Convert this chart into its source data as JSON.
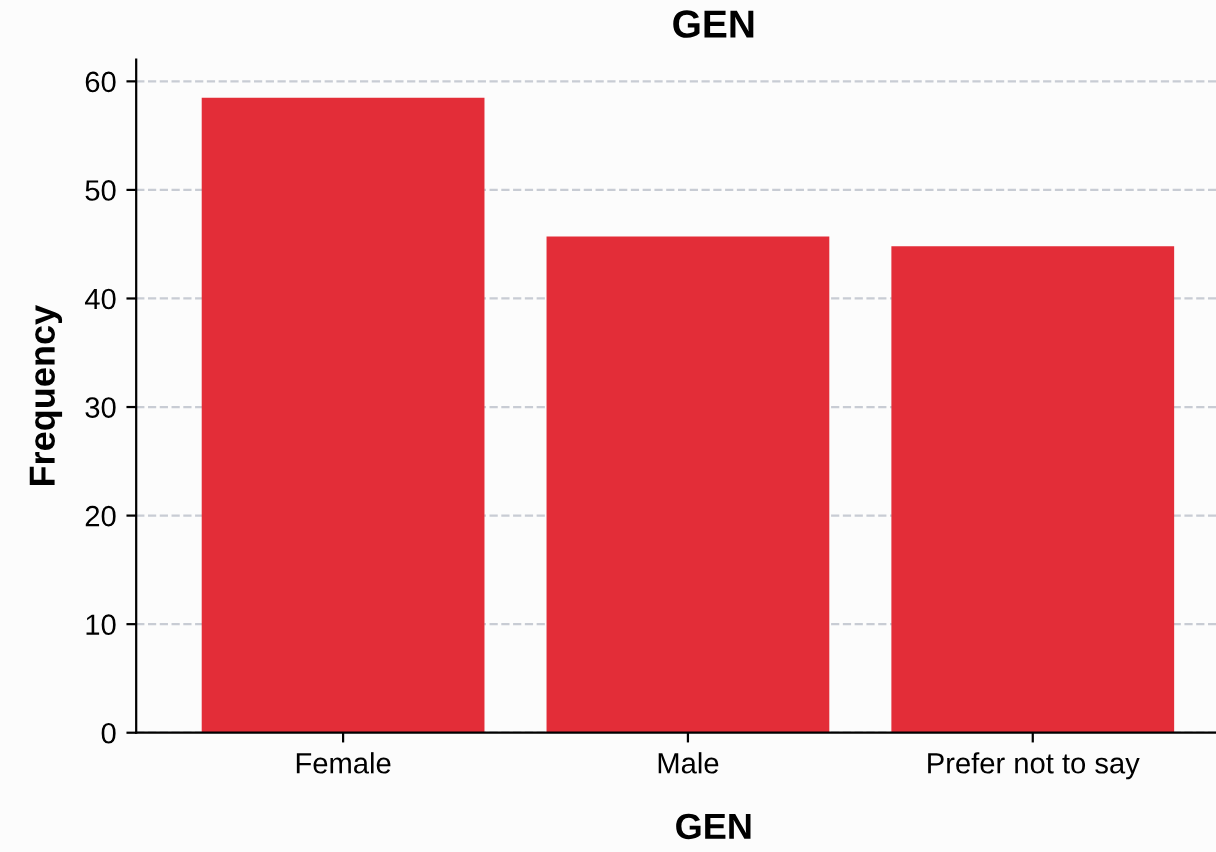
{
  "chart_data": {
    "type": "bar",
    "title": "GEN",
    "xlabel": "GEN",
    "ylabel": "Frequency",
    "categories": [
      "Female",
      "Male",
      "Prefer not to say"
    ],
    "values": [
      58.5,
      45.7,
      44.8
    ],
    "color": "#e32d38",
    "ylim": [
      0,
      62
    ],
    "yticks": [
      0,
      10,
      20,
      30,
      40,
      50,
      60
    ],
    "grid": "y"
  }
}
